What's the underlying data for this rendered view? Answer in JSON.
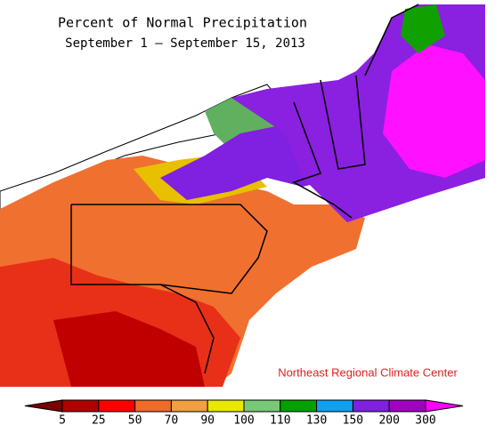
{
  "title": "Percent of Normal Precipitation",
  "subtitle": "September 1 — September 15, 2013",
  "credit": "Northeast Regional Climate Center",
  "legend": {
    "ticks": [
      5,
      25,
      50,
      70,
      90,
      100,
      110,
      130,
      150,
      200,
      300
    ],
    "colors": [
      "#7a0000",
      "#b00000",
      "#ff0000",
      "#f06a28",
      "#f0a040",
      "#e8e800",
      "#78c878",
      "#00a000",
      "#10a0f0",
      "#8020e0",
      "#a000c0",
      "#ff00ff"
    ]
  }
}
